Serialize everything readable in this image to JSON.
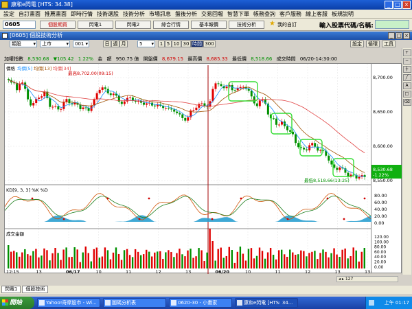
{
  "window": {
    "title": "康和e閃電 [HTS: 34.38]"
  },
  "menu": [
    "設定",
    "自訂畫面",
    "推薦畫面",
    "即時行情",
    "技術選股",
    "技術分析",
    "市場訊息",
    "盤後分析",
    "交易回報",
    "智慧下單",
    "帳務查詢",
    "客戶服務",
    "線上客服",
    "板規說明"
  ],
  "toolbar": {
    "code": "0605",
    "buttons": [
      "個股期貨",
      "閃電1",
      "閃電2",
      "綜合行情",
      "基本報價",
      "技術分析",
      "綜合新聞"
    ],
    "my_list": "我的自訂",
    "stock_input_label": "輸入股票代碼/名稱:"
  },
  "subwindow": {
    "title": "[0605] 個股技術分析"
  },
  "controls": {
    "market": "類股",
    "exchange": "上市",
    "code": "001",
    "periods": [
      "日",
      "週",
      "月"
    ],
    "num": "5",
    "nums": [
      "1",
      "5",
      "10",
      "30",
      "時間",
      "300"
    ],
    "active_num": "時間",
    "right_buttons": [
      "設定",
      "循環",
      "工具"
    ]
  },
  "info": {
    "name": "加權指數",
    "price": "8,530.68",
    "change": "▼105.42",
    "pct": "1.22%",
    "k1_label": "金",
    "k1": "額",
    "vol": "950.75 億",
    "open_label": "開盤價",
    "open": "8,679.15",
    "high_label": "最高價",
    "high": "8,685.33",
    "low_label": "最低價",
    "low": "8,518.66",
    "time_label": "成交時間",
    "time": "06/20-14:30:00"
  },
  "price_panel": {
    "legend": [
      "價格",
      "均價[5]",
      "均價[13]",
      "均價[34]"
    ],
    "high_note": "最高8,702.00(09:15)",
    "low_note": "最低8,518.66(13:25)",
    "last_price_tag": "8,530.68",
    "last_pct_tag": "-1.22%",
    "y_ticks": [
      "8,700.00",
      "8,650.00",
      "8,600.00",
      "8,550.00"
    ]
  },
  "kd_panel": {
    "legend": "KD[9, 3, 3] %K %D",
    "y_ticks": [
      "80.00",
      "60.00",
      "40.00",
      "20.00",
      "0.00"
    ]
  },
  "vol_panel": {
    "legend": "成交金額",
    "y_ticks": [
      "120.00",
      "100.00",
      "80.00",
      "60.00",
      "40.00",
      "20.00",
      "0.00"
    ]
  },
  "x_axis": [
    "12:15",
    "13",
    "06/17",
    "10",
    "11",
    "12",
    "13",
    "06/20",
    "10",
    "11",
    "12",
    "13",
    "13:30"
  ],
  "bottom_tabs": [
    "閃電1",
    "個股技術"
  ],
  "taskbar": {
    "start": "開始",
    "tasks": [
      "Yahoo!奇摩股市 - Wi...",
      "圖碼分析表",
      "0620-30 - 小畫家",
      "康和e閃電 [HTS: 34..."
    ],
    "clock": "上午 01:17"
  },
  "scroll_label": "127",
  "colors": {
    "up": "#e00000",
    "down": "#009000",
    "ma5": "#1890ff",
    "ma13": "#a05000",
    "ma34": "#e04040",
    "highlight": "#33dd33"
  }
}
